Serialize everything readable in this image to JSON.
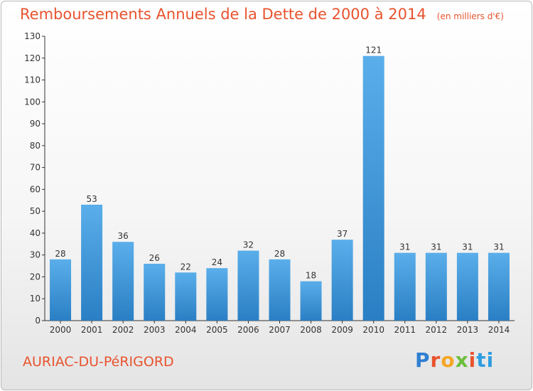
{
  "header": {
    "title": "Remboursements Annuels de la Dette de 2000 à 2014",
    "subtitle": "(en milliers d'€)"
  },
  "footer": {
    "city": "AURIAC-DU-PéRIGORD",
    "logo": [
      "P",
      "r",
      "o",
      "x",
      "i",
      "t",
      "i"
    ]
  },
  "colors": {
    "title": "#e8532e",
    "bar_light": "#5aaeea",
    "bar_dark": "#2a7fc4"
  },
  "chart_data": {
    "type": "bar",
    "categories": [
      "2000",
      "2001",
      "2002",
      "2003",
      "2004",
      "2005",
      "2006",
      "2007",
      "2008",
      "2009",
      "2010",
      "2011",
      "2012",
      "2013",
      "2014"
    ],
    "values": [
      28,
      53,
      36,
      26,
      22,
      24,
      32,
      28,
      18,
      37,
      121,
      31,
      31,
      31,
      31
    ],
    "ylim": [
      0,
      130
    ],
    "yticks": [
      0,
      10,
      20,
      30,
      40,
      50,
      60,
      70,
      80,
      90,
      100,
      110,
      120,
      130
    ],
    "title": "Remboursements Annuels de la Dette de 2000 à 2014",
    "xlabel": "",
    "ylabel": "",
    "grid": false,
    "data_labels": true
  }
}
